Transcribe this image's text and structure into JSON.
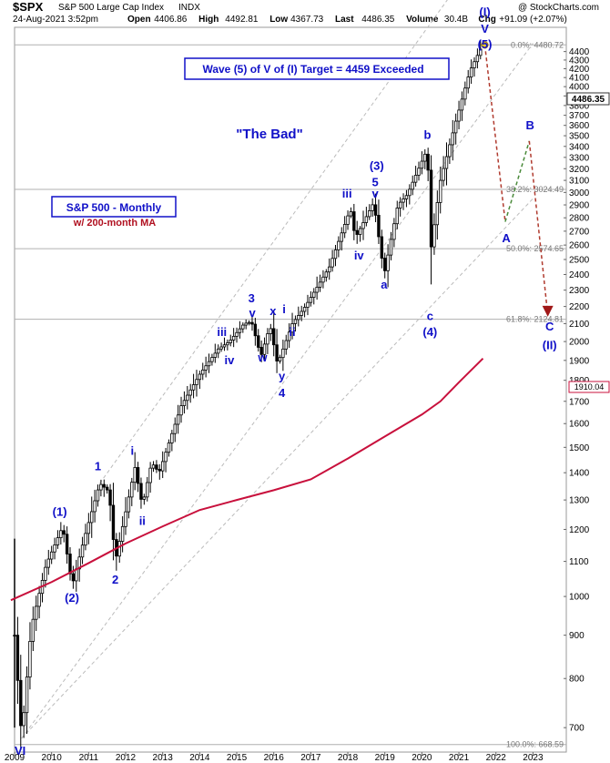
{
  "header": {
    "symbol": "$SPX",
    "name": "S&P 500 Large Cap Index",
    "exchange": "INDX",
    "watermark": "@ StockCharts.com",
    "date": "24-Aug-2021 3:52pm",
    "quote": [
      {
        "label": "Open",
        "value": "4406.86"
      },
      {
        "label": "High",
        "value": "4492.81"
      },
      {
        "label": "Low",
        "value": "4367.73"
      },
      {
        "label": "Last",
        "value": "4486.35"
      },
      {
        "label": "Volume",
        "value": "30.4B"
      },
      {
        "label": "Chg",
        "value": "+91.09 (+2.07%)"
      }
    ]
  },
  "annotations": {
    "target_box": "Wave (5) of V of (I) Target = 4459 Exceeded",
    "title_quote": "\"The Bad\"",
    "legend_title": "S&P 500 - Monthly",
    "legend_sub": "w/ 200-month MA"
  },
  "price_tags": {
    "last": "4486.35",
    "ma": "1910.04"
  },
  "colors": {
    "wave_labels": "#1010c8",
    "ma_line": "#c8103c",
    "projection_red": "#b03a2e",
    "projection_green": "#4a8a3a",
    "channel": "#bbbbbb",
    "fib_lines": "#b0b0b0"
  },
  "chart_data": {
    "type": "candlestick",
    "scale": "log",
    "ylim": [
      655,
      4700
    ],
    "y_ticks": [
      700,
      800,
      900,
      1000,
      1100,
      1200,
      1300,
      1400,
      1500,
      1600,
      1700,
      1800,
      1900,
      2000,
      2100,
      2200,
      2300,
      2400,
      2500,
      2600,
      2700,
      2800,
      2900,
      3000,
      3100,
      3200,
      3300,
      3400,
      3500,
      3600,
      3700,
      3800,
      3900,
      4000,
      4100,
      4200,
      4300,
      4400
    ],
    "x_labels": [
      "2009",
      "2010",
      "2011",
      "2012",
      "2013",
      "2014",
      "2015",
      "2016",
      "2017",
      "2018",
      "2019",
      "2020",
      "2021",
      "2022",
      "2023"
    ],
    "anchors": [
      [
        2009.0,
        900
      ],
      [
        2009.19,
        680
      ],
      [
        2009.45,
        920
      ],
      [
        2009.85,
        1090
      ],
      [
        2010.3,
        1210
      ],
      [
        2010.55,
        1030
      ],
      [
        2010.9,
        1180
      ],
      [
        2011.3,
        1360
      ],
      [
        2011.55,
        1330
      ],
      [
        2011.72,
        1100
      ],
      [
        2012.25,
        1420
      ],
      [
        2012.45,
        1280
      ],
      [
        2012.7,
        1440
      ],
      [
        2012.9,
        1400
      ],
      [
        2013.5,
        1680
      ],
      [
        2014.0,
        1830
      ],
      [
        2014.5,
        1960
      ],
      [
        2014.8,
        2000
      ],
      [
        2015.2,
        2100
      ],
      [
        2015.4,
        2110
      ],
      [
        2015.65,
        1920
      ],
      [
        2015.9,
        2090
      ],
      [
        2016.1,
        1880
      ],
      [
        2016.5,
        2100
      ],
      [
        2016.85,
        2200
      ],
      [
        2017.5,
        2450
      ],
      [
        2018.07,
        2870
      ],
      [
        2018.2,
        2650
      ],
      [
        2018.7,
        2920
      ],
      [
        2018.98,
        2400
      ],
      [
        2019.35,
        2900
      ],
      [
        2019.6,
        2980
      ],
      [
        2020.15,
        3380
      ],
      [
        2020.23,
        2550
      ],
      [
        2020.5,
        3100
      ],
      [
        2020.9,
        3620
      ],
      [
        2021.3,
        4180
      ],
      [
        2021.65,
        4490
      ]
    ],
    "moving_average": {
      "name": "200-month MA",
      "points": [
        [
          2008.9,
          990
        ],
        [
          2010.0,
          1040
        ],
        [
          2011.0,
          1095
        ],
        [
          2012.0,
          1155
        ],
        [
          2013.0,
          1210
        ],
        [
          2014.0,
          1265
        ],
        [
          2015.0,
          1300
        ],
        [
          2016.0,
          1335
        ],
        [
          2017.0,
          1375
        ],
        [
          2018.0,
          1455
        ],
        [
          2019.0,
          1545
        ],
        [
          2020.0,
          1640
        ],
        [
          2020.5,
          1700
        ],
        [
          2021.0,
          1790
        ],
        [
          2021.65,
          1910
        ]
      ]
    },
    "channel_lines": [
      {
        "from": [
          2009.19,
          680
        ],
        "to": [
          2023.0,
          4500
        ]
      },
      {
        "from": [
          2009.19,
          680
        ],
        "to": [
          2023.0,
          2950
        ]
      },
      {
        "from": [
          2011.3,
          1360
        ],
        "to": [
          2023.0,
          7000
        ]
      }
    ],
    "fib_levels": [
      {
        "label": "0.0%: 4480.72",
        "value": 4480.72
      },
      {
        "label": "38.2%: 3024.49",
        "value": 3024.49
      },
      {
        "label": "50.0%: 2574.65",
        "value": 2574.65
      },
      {
        "label": "61.8%: 2124.81",
        "value": 2124.81
      },
      {
        "label": "100.0%: 668.59",
        "value": 668.59
      }
    ],
    "projection": [
      {
        "from": [
          2021.7,
          4480
        ],
        "to": [
          2022.25,
          2770
        ],
        "color": "#b03a2e"
      },
      {
        "from": [
          2022.25,
          2770
        ],
        "to": [
          2022.9,
          3450
        ],
        "color": "#4a8a3a"
      },
      {
        "from": [
          2022.9,
          3450
        ],
        "to": [
          2023.4,
          2150
        ],
        "color": "#b03a2e"
      }
    ],
    "wave_labels": [
      {
        "text": "(1)",
        "x": 2010.22,
        "y": 1245
      },
      {
        "text": "(2)",
        "x": 2010.55,
        "y": 985
      },
      {
        "text": "1",
        "x": 2011.25,
        "y": 1410
      },
      {
        "text": "2",
        "x": 2011.72,
        "y": 1035
      },
      {
        "text": "i",
        "x": 2012.18,
        "y": 1470
      },
      {
        "text": "ii",
        "x": 2012.45,
        "y": 1215
      },
      {
        "text": "iii",
        "x": 2014.6,
        "y": 2030
      },
      {
        "text": "iv",
        "x": 2014.8,
        "y": 1880
      },
      {
        "text": "3",
        "x": 2015.4,
        "y": 2225
      },
      {
        "text": "v",
        "x": 2015.42,
        "y": 2140
      },
      {
        "text": "w",
        "x": 2015.7,
        "y": 1895
      },
      {
        "text": "x",
        "x": 2015.98,
        "y": 2150
      },
      {
        "text": "y",
        "x": 2016.22,
        "y": 1800
      },
      {
        "text": "4",
        "x": 2016.22,
        "y": 1720
      },
      {
        "text": "i",
        "x": 2016.28,
        "y": 2160
      },
      {
        "text": "ii",
        "x": 2016.5,
        "y": 2030
      },
      {
        "text": "iii",
        "x": 2017.98,
        "y": 2960
      },
      {
        "text": "iv",
        "x": 2018.3,
        "y": 2500
      },
      {
        "text": "(3)",
        "x": 2018.78,
        "y": 3190
      },
      {
        "text": "5",
        "x": 2018.74,
        "y": 3050
      },
      {
        "text": "v",
        "x": 2018.74,
        "y": 2960
      },
      {
        "text": "a",
        "x": 2018.98,
        "y": 2310
      },
      {
        "text": "b",
        "x": 2020.15,
        "y": 3470
      },
      {
        "text": "c",
        "x": 2020.22,
        "y": 2120
      },
      {
        "text": "(4)",
        "x": 2020.22,
        "y": 2030
      },
      {
        "text": "(I)",
        "x": 2021.7,
        "y": 4850
      },
      {
        "text": "V",
        "x": 2021.7,
        "y": 4630
      },
      {
        "text": "(5)",
        "x": 2021.7,
        "y": 4440
      },
      {
        "text": "A",
        "x": 2022.28,
        "y": 2620
      },
      {
        "text": "B",
        "x": 2022.92,
        "y": 3560
      },
      {
        "text": "C",
        "x": 2023.45,
        "y": 2060
      },
      {
        "text": "(II)",
        "x": 2023.45,
        "y": 1960
      },
      {
        "text": "VI",
        "x": 2009.15,
        "y": 650
      }
    ]
  }
}
